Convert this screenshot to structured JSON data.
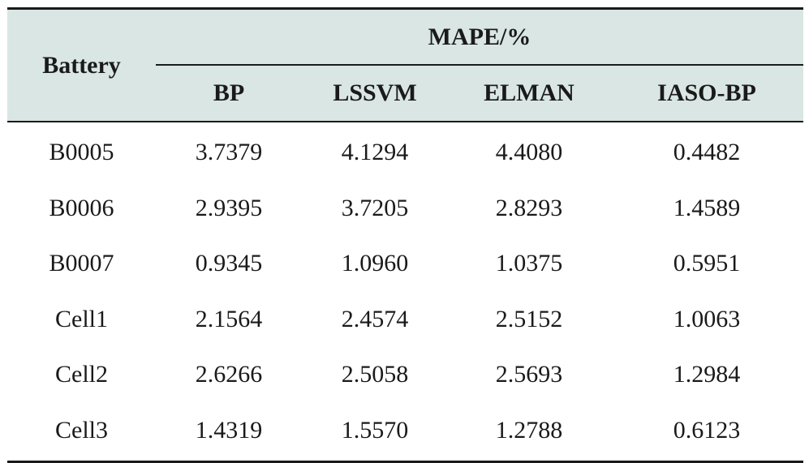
{
  "header": {
    "battery_label": "Battery",
    "group_label": "MAPE/%",
    "columns": [
      "BP",
      "LSSVM",
      "ELMAN",
      "IASO-BP"
    ]
  },
  "rows": [
    {
      "battery": "B0005",
      "values": [
        "3.7379",
        "4.1294",
        "4.4080",
        "0.4482"
      ]
    },
    {
      "battery": "B0006",
      "values": [
        "2.9395",
        "3.7205",
        "2.8293",
        "1.4589"
      ]
    },
    {
      "battery": "B0007",
      "values": [
        "0.9345",
        "1.0960",
        "1.0375",
        "0.5951"
      ]
    },
    {
      "battery": "Cell1",
      "values": [
        "2.1564",
        "2.4574",
        "2.5152",
        "1.0063"
      ]
    },
    {
      "battery": "Cell2",
      "values": [
        "2.6266",
        "2.5058",
        "2.5693",
        "1.2984"
      ]
    },
    {
      "battery": "Cell3",
      "values": [
        "1.4319",
        "1.5570",
        "1.2788",
        "0.6123"
      ]
    }
  ],
  "colors": {
    "header_bg": "#d9e6e3",
    "rule": "#1a1a1a"
  }
}
